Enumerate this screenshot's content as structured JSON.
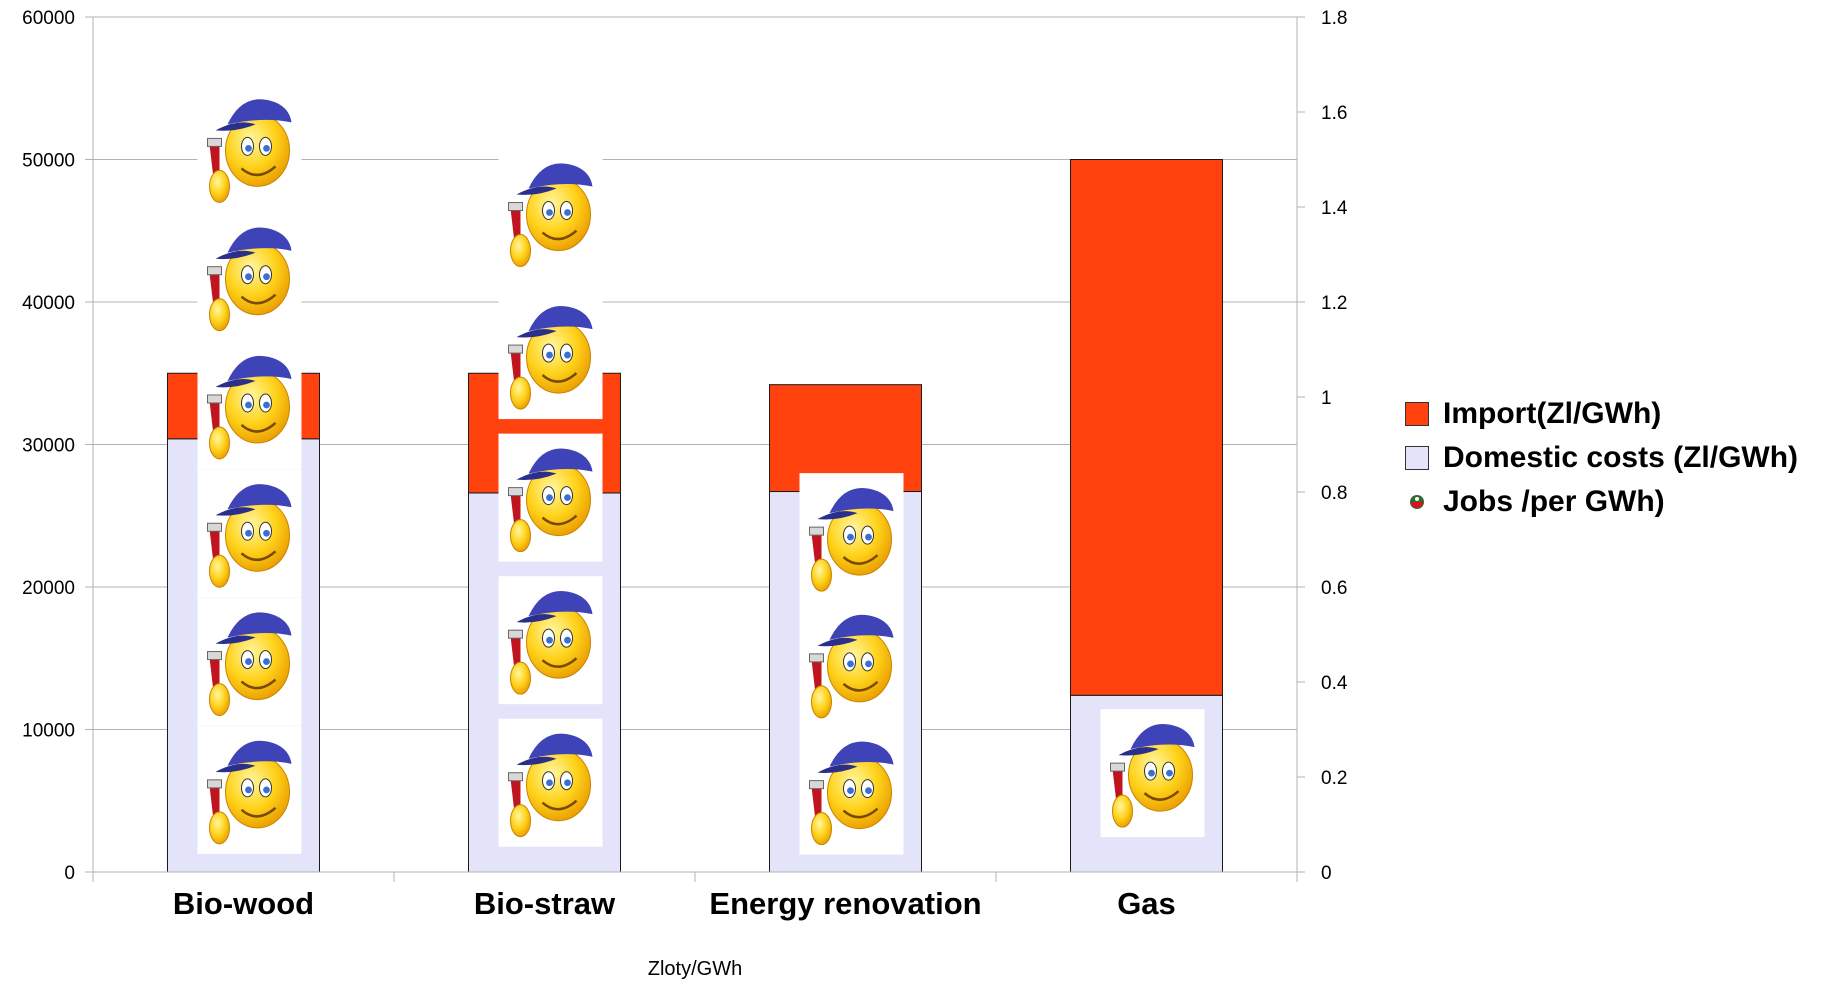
{
  "chart_data": {
    "type": "bar",
    "stacked": true,
    "categories": [
      "Bio-wood",
      "Bio-straw",
      "Energy renovation",
      "Gas"
    ],
    "series": [
      {
        "name": "Domestic costs (Zl/GWh)",
        "values": [
          30400,
          26600,
          26700,
          12400
        ],
        "color": "#e3e3fa",
        "axis": "left"
      },
      {
        "name": "Import(Zl/GWh)",
        "values": [
          4600,
          8400,
          7500,
          37600
        ],
        "color": "#ff420e",
        "axis": "left"
      },
      {
        "name": "Jobs /per GWh)",
        "values": [
          1.65,
          1.53,
          0.83,
          0.37
        ],
        "axis": "right",
        "marker": "smiley-worker-icon"
      }
    ],
    "xlabel": "Zloty/GWh",
    "y_left": {
      "min": 0,
      "max": 60000,
      "ticks": [
        "0",
        "10000",
        "20000",
        "30000",
        "40000",
        "50000",
        "60000"
      ]
    },
    "y_right": {
      "min": 0,
      "max": 1.8,
      "ticks": [
        "0",
        "0.2",
        "0.4",
        "0.6",
        "0.8",
        "1",
        "1.2",
        "1.4",
        "1.6",
        "1.8"
      ]
    },
    "grid": true,
    "legend_position": "right"
  },
  "legend": [
    {
      "label": "Import(Zl/GWh)",
      "kind": "swatch",
      "color": "#ff420e"
    },
    {
      "label": "Domestic costs (Zl/GWh)",
      "kind": "swatch",
      "color": "#e3e3fa"
    },
    {
      "label": "Jobs /per GWh)",
      "kind": "marker",
      "icon": "smiley-worker-icon"
    }
  ]
}
